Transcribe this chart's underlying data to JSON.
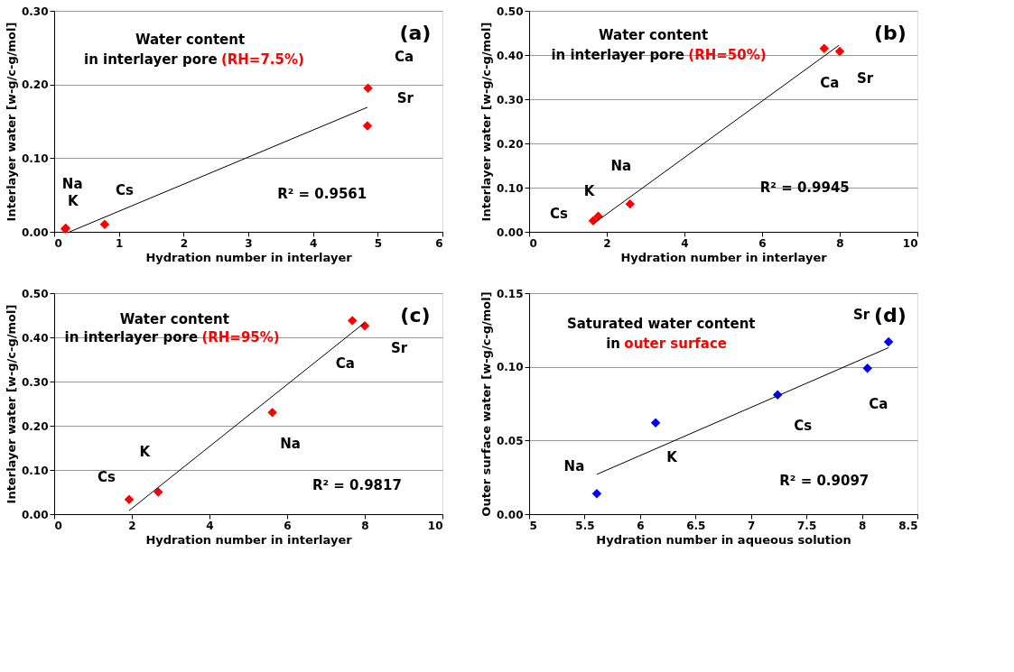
{
  "chart_data": [
    {
      "type": "scatter",
      "xlabel": "Hydration number in interlayer",
      "ylabel": "Interlayer water [w-g/c-g/mol]",
      "xlim": [
        0,
        6
      ],
      "xticks": [
        0,
        1,
        2,
        3,
        4,
        5,
        6
      ],
      "ylim": [
        0,
        0.3
      ],
      "yticks": [
        {
          "value": 0,
          "label": "0.00"
        },
        {
          "value": 0.1,
          "label": "0.10"
        },
        {
          "value": 0.2,
          "label": "0.20"
        },
        {
          "value": 0.3,
          "label": "0.30"
        }
      ],
      "grid": "y",
      "marker": "diamond",
      "series": [
        {
          "color": "#ff0000",
          "x": [
            0.17,
            0.18,
            0.78,
            4.85,
            4.84
          ],
          "values": [
            0.004,
            0.005,
            0.01,
            0.195,
            0.144
          ]
        },
        {
          "type": "line",
          "marker": "none",
          "color": "#000000",
          "x": [
            0.24,
            4.84
          ],
          "values": [
            0.0,
            0.169
          ]
        }
      ],
      "annotations": [
        "(a)",
        "Water content",
        "in interlayer pore",
        "(RH=7.5%)",
        "R² = 0.9561",
        {
          "text": "Na",
          "x": 0.17,
          "y": 0.004
        },
        {
          "text": "K",
          "x": 0.18,
          "y": 0.005
        },
        {
          "text": "Cs",
          "x": 0.78,
          "y": 0.01
        },
        {
          "text": "Ca",
          "x": 4.85,
          "y": 0.195
        },
        {
          "text": "Sr",
          "x": 4.84,
          "y": 0.144
        }
      ]
    },
    {
      "type": "scatter",
      "xlabel": "Hydration number in interlayer",
      "ylabel": "Interlayer water [w-g/c-g/mol]",
      "xlim": [
        0,
        10
      ],
      "xticks": [
        0,
        2,
        4,
        6,
        8,
        10
      ],
      "ylim": [
        0,
        0.5
      ],
      "yticks": [
        {
          "value": 0,
          "label": "0.00"
        },
        {
          "value": 0.1,
          "label": "0.10"
        },
        {
          "value": 0.2,
          "label": "0.20"
        },
        {
          "value": 0.3,
          "label": "0.30"
        },
        {
          "value": 0.4,
          "label": "0.40"
        },
        {
          "value": 0.5,
          "label": "0.50"
        }
      ],
      "grid": "y",
      "marker": "diamond",
      "series": [
        {
          "color": "#ff0000",
          "x": [
            1.65,
            1.78,
            2.6,
            7.6,
            8.0
          ],
          "values": [
            0.025,
            0.035,
            0.063,
            0.415,
            0.408
          ]
        },
        {
          "type": "line",
          "marker": "none",
          "color": "#000000",
          "x": [
            1.68,
            7.98
          ],
          "values": [
            0.02,
            0.422
          ]
        }
      ],
      "annotations": [
        "(b)",
        "Water content",
        "in interlayer pore",
        "(RH=50%)",
        "R² = 0.9945",
        {
          "text": "Cs",
          "x": 1.65,
          "y": 0.025
        },
        {
          "text": "K",
          "x": 1.78,
          "y": 0.035
        },
        {
          "text": "Na",
          "x": 2.6,
          "y": 0.063
        },
        {
          "text": "Ca",
          "x": 7.6,
          "y": 0.415
        },
        {
          "text": "Sr",
          "x": 8.0,
          "y": 0.408
        }
      ]
    },
    {
      "type": "scatter",
      "xlabel": "Hydration number in interlayer",
      "ylabel": "Interlayer water [w-g/c-g/mol]",
      "xlim": [
        0,
        10
      ],
      "xticks": [
        0,
        2,
        4,
        6,
        8,
        10
      ],
      "ylim": [
        0,
        0.5
      ],
      "yticks": [
        {
          "value": 0,
          "label": "0.00"
        },
        {
          "value": 0.1,
          "label": "0.10"
        },
        {
          "value": 0.2,
          "label": "0.20"
        },
        {
          "value": 0.3,
          "label": "0.30"
        },
        {
          "value": 0.4,
          "label": "0.40"
        },
        {
          "value": 0.5,
          "label": "0.50"
        }
      ],
      "grid": "y",
      "marker": "diamond",
      "series": [
        {
          "color": "#ff0000",
          "x": [
            1.93,
            2.68,
            5.62,
            7.68,
            8.0
          ],
          "values": [
            0.033,
            0.05,
            0.23,
            0.438,
            0.426
          ]
        },
        {
          "type": "line",
          "marker": "none",
          "color": "#000000",
          "x": [
            1.93,
            7.98
          ],
          "values": [
            0.008,
            0.432
          ]
        }
      ],
      "annotations": [
        "(c)",
        "Water content",
        "in interlayer pore",
        "(RH=95%)",
        "R² = 0.9817",
        {
          "text": "Cs",
          "x": 1.93,
          "y": 0.033
        },
        {
          "text": "K",
          "x": 2.68,
          "y": 0.05
        },
        {
          "text": "Na",
          "x": 5.62,
          "y": 0.23
        },
        {
          "text": "Ca",
          "x": 7.68,
          "y": 0.438
        },
        {
          "text": "Sr",
          "x": 8.0,
          "y": 0.426
        }
      ]
    },
    {
      "type": "scatter",
      "xlabel": "Hydration number in aqueous solution",
      "ylabel": "Outer surface water [w-g/c-g/mol]",
      "xlim": [
        5,
        8.5
      ],
      "xticks": [
        5,
        5.5,
        6,
        6.5,
        7,
        7.5,
        8,
        8.5
      ],
      "ylim": [
        0,
        0.15
      ],
      "yticks": [
        {
          "value": 0,
          "label": "0.00"
        },
        {
          "value": 0.05,
          "label": "0.05"
        },
        {
          "value": 0.1,
          "label": "0.10"
        },
        {
          "value": 0.15,
          "label": "0.15"
        }
      ],
      "grid": "y",
      "marker": "diamond",
      "series": [
        {
          "color": "#0000ff",
          "x": [
            5.61,
            6.14,
            7.24,
            8.05,
            8.24
          ],
          "values": [
            0.014,
            0.062,
            0.081,
            0.099,
            0.117
          ]
        },
        {
          "type": "line",
          "marker": "none",
          "color": "#000000",
          "x": [
            5.61,
            8.24
          ],
          "values": [
            0.027,
            0.113
          ]
        }
      ],
      "annotations": [
        "(d)",
        "Saturated water content",
        "in",
        "outer surface",
        "R² = 0.9097",
        {
          "text": "Na",
          "x": 5.61,
          "y": 0.014
        },
        {
          "text": "K",
          "x": 6.14,
          "y": 0.062
        },
        {
          "text": "Cs",
          "x": 7.24,
          "y": 0.081
        },
        {
          "text": "Ca",
          "x": 8.05,
          "y": 0.099
        },
        {
          "text": "Sr",
          "x": 8.24,
          "y": 0.117
        }
      ]
    }
  ]
}
